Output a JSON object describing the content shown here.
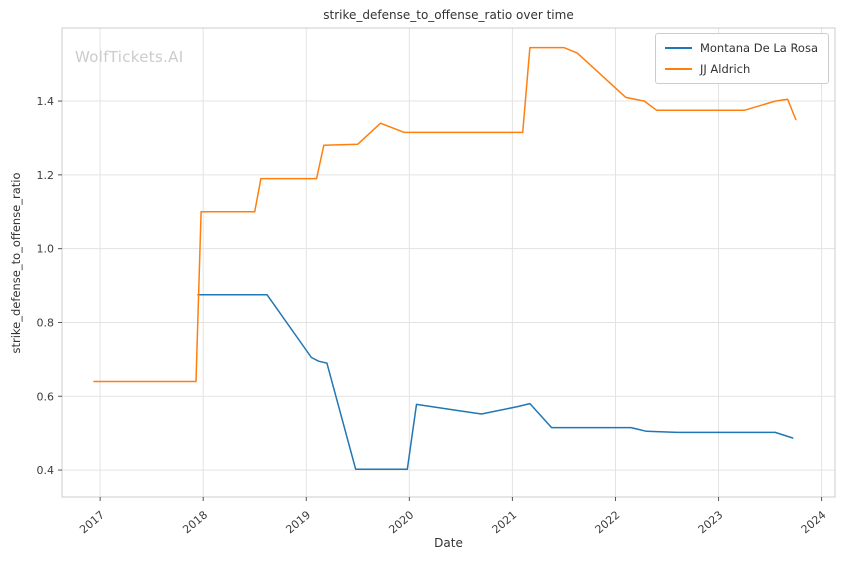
{
  "watermark": "WolfTickets.AI",
  "chart_data": {
    "type": "line",
    "title": "strike_defense_to_offense_ratio over time",
    "xlabel": "Date",
    "ylabel": "strike_defense_to_offense_ratio",
    "xlim": [
      2016.63,
      2024.13
    ],
    "ylim": [
      0.327,
      1.598
    ],
    "xticks": [
      2017,
      2018,
      2019,
      2020,
      2021,
      2022,
      2023,
      2024
    ],
    "yticks": [
      0.4,
      0.6,
      0.8,
      1.0,
      1.2,
      1.4
    ],
    "grid": true,
    "legend_position": "upper right",
    "series": [
      {
        "name": "Montana De La Rosa",
        "color": "#1f77b4",
        "points": [
          [
            2017.95,
            0.875
          ],
          [
            2018.62,
            0.875
          ],
          [
            2019.05,
            0.705
          ],
          [
            2019.12,
            0.695
          ],
          [
            2019.2,
            0.69
          ],
          [
            2019.48,
            0.402
          ],
          [
            2019.98,
            0.402
          ],
          [
            2020.07,
            0.578
          ],
          [
            2020.5,
            0.56
          ],
          [
            2020.7,
            0.552
          ],
          [
            2021.05,
            0.572
          ],
          [
            2021.17,
            0.58
          ],
          [
            2021.38,
            0.515
          ],
          [
            2022.15,
            0.515
          ],
          [
            2022.3,
            0.505
          ],
          [
            2022.6,
            0.502
          ],
          [
            2023.55,
            0.502
          ],
          [
            2023.72,
            0.487
          ]
        ]
      },
      {
        "name": "JJ Aldrich",
        "color": "#ff7f0e",
        "points": [
          [
            2016.94,
            0.64
          ],
          [
            2017.93,
            0.64
          ],
          [
            2017.98,
            1.1
          ],
          [
            2018.5,
            1.1
          ],
          [
            2018.56,
            1.19
          ],
          [
            2019.1,
            1.19
          ],
          [
            2019.17,
            1.28
          ],
          [
            2019.5,
            1.283
          ],
          [
            2019.72,
            1.34
          ],
          [
            2019.95,
            1.315
          ],
          [
            2021.1,
            1.315
          ],
          [
            2021.17,
            1.545
          ],
          [
            2021.5,
            1.545
          ],
          [
            2021.63,
            1.53
          ],
          [
            2022.1,
            1.41
          ],
          [
            2022.28,
            1.4
          ],
          [
            2022.4,
            1.375
          ],
          [
            2023.25,
            1.375
          ],
          [
            2023.55,
            1.4
          ],
          [
            2023.67,
            1.405
          ],
          [
            2023.75,
            1.35
          ]
        ]
      }
    ]
  }
}
